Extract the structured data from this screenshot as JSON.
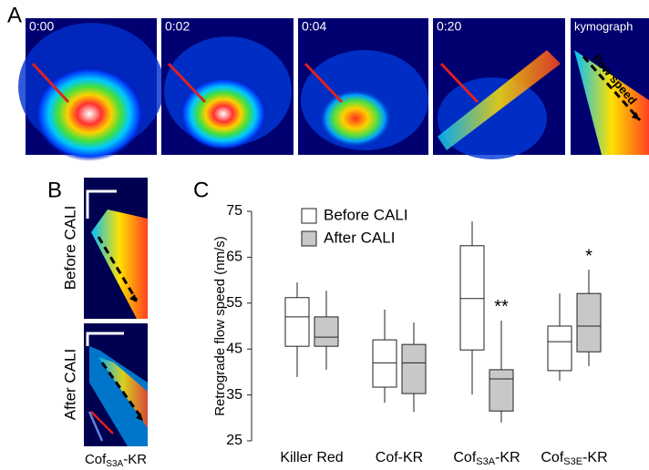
{
  "panel_a": {
    "label": "A",
    "frames": [
      "0:00",
      "0:02",
      "0:04",
      "0:20",
      "kymograph"
    ],
    "flow_label": "flow speed"
  },
  "panel_b": {
    "label": "B",
    "rows": [
      "Before CALI",
      "After CALI"
    ],
    "caption": [
      "Cof",
      "S3A",
      "-KR"
    ]
  },
  "panel_c": {
    "label": "C"
  },
  "chart_data": {
    "type": "box",
    "y_label": "Retrograde flow speed (nm/s)",
    "categories": [
      [
        "Killer Red"
      ],
      [
        "Cof-KR"
      ],
      [
        "Cof",
        "S3A",
        "-KR"
      ],
      [
        "Cof",
        "S3E",
        "-KR"
      ]
    ],
    "ylim": [
      25,
      75
    ],
    "yticks": [
      25,
      35,
      45,
      55,
      65,
      75
    ],
    "grid": false,
    "series": [
      {
        "name": "Before CALI",
        "color": "#ffffff",
        "values": [
          {
            "min": 38.9,
            "q1": 45.6,
            "median": 52,
            "q3": 56.2,
            "max": 59.5
          },
          {
            "min": 33.3,
            "q1": 36.7,
            "median": 42,
            "q3": 47,
            "max": 53.6
          },
          {
            "min": 35.1,
            "q1": 44.8,
            "median": 56,
            "q3": 67.5,
            "max": 72.8
          },
          {
            "min": 38.1,
            "q1": 40.3,
            "median": 46.6,
            "q3": 50,
            "max": 57.1
          }
        ]
      },
      {
        "name": "After CALI",
        "color": "#c8c8c8",
        "annotations": [
          null,
          null,
          "**",
          "*"
        ],
        "values": [
          {
            "min": 40.5,
            "q1": 45.6,
            "median": 47.6,
            "q3": 52,
            "max": 57.7
          },
          {
            "min": 31.3,
            "q1": 35.3,
            "median": 42,
            "q3": 46,
            "max": 50.8
          },
          {
            "min": 29,
            "q1": 31.5,
            "median": 38.5,
            "q3": 40.5,
            "max": 51.2
          },
          {
            "min": 41.3,
            "q1": 44.4,
            "median": 50,
            "q3": 57.1,
            "max": 62.3
          }
        ]
      }
    ]
  }
}
